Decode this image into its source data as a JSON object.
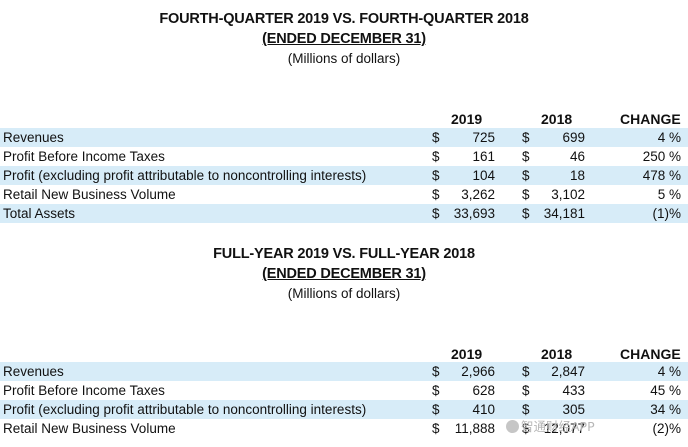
{
  "q4": {
    "title": "FOURTH-QUARTER 2019 VS. FOURTH-QUARTER 2018",
    "subtitle": "(ENDED DECEMBER 31)",
    "units": "(Millions of dollars)",
    "col_2019": "2019",
    "col_2018": "2018",
    "col_change": "CHANGE",
    "rows": [
      {
        "label": "Revenues",
        "d1": "$",
        "v2019": "725",
        "d2": "$",
        "v2018": "699",
        "change": "4 %"
      },
      {
        "label": "Profit Before Income Taxes",
        "d1": "$",
        "v2019": "161",
        "d2": "$",
        "v2018": "46",
        "change": "250 %"
      },
      {
        "label": "Profit (excluding profit attributable to noncontrolling interests)",
        "d1": "$",
        "v2019": "104",
        "d2": "$",
        "v2018": "18",
        "change": "478 %"
      },
      {
        "label": "Retail New Business Volume",
        "d1": "$",
        "v2019": "3,262",
        "d2": "$",
        "v2018": "3,102",
        "change": "5 %"
      },
      {
        "label": "Total Assets",
        "d1": "$",
        "v2019": "33,693",
        "d2": "$",
        "v2018": "34,181",
        "change": "(1)%"
      }
    ]
  },
  "fy": {
    "title": "FULL-YEAR 2019 VS. FULL-YEAR 2018",
    "subtitle": "(ENDED DECEMBER 31)",
    "units": "(Millions of dollars)",
    "col_2019": "2019",
    "col_2018": "2018",
    "col_change": "CHANGE",
    "rows": [
      {
        "label": "Revenues",
        "d1": "$",
        "v2019": "2,966",
        "d2": "$",
        "v2018": "2,847",
        "change": "4 %"
      },
      {
        "label": "Profit Before Income Taxes",
        "d1": "$",
        "v2019": "628",
        "d2": "$",
        "v2018": "433",
        "change": "45 %"
      },
      {
        "label": "Profit (excluding profit attributable to noncontrolling interests)",
        "d1": "$",
        "v2019": "410",
        "d2": "$",
        "v2018": "305",
        "change": "34 %"
      },
      {
        "label": "Retail New Business Volume",
        "d1": "$",
        "v2019": "11,888",
        "d2": "$",
        "v2018": "12,077",
        "change": "(2)%"
      }
    ]
  },
  "watermark": "智通财经APP"
}
